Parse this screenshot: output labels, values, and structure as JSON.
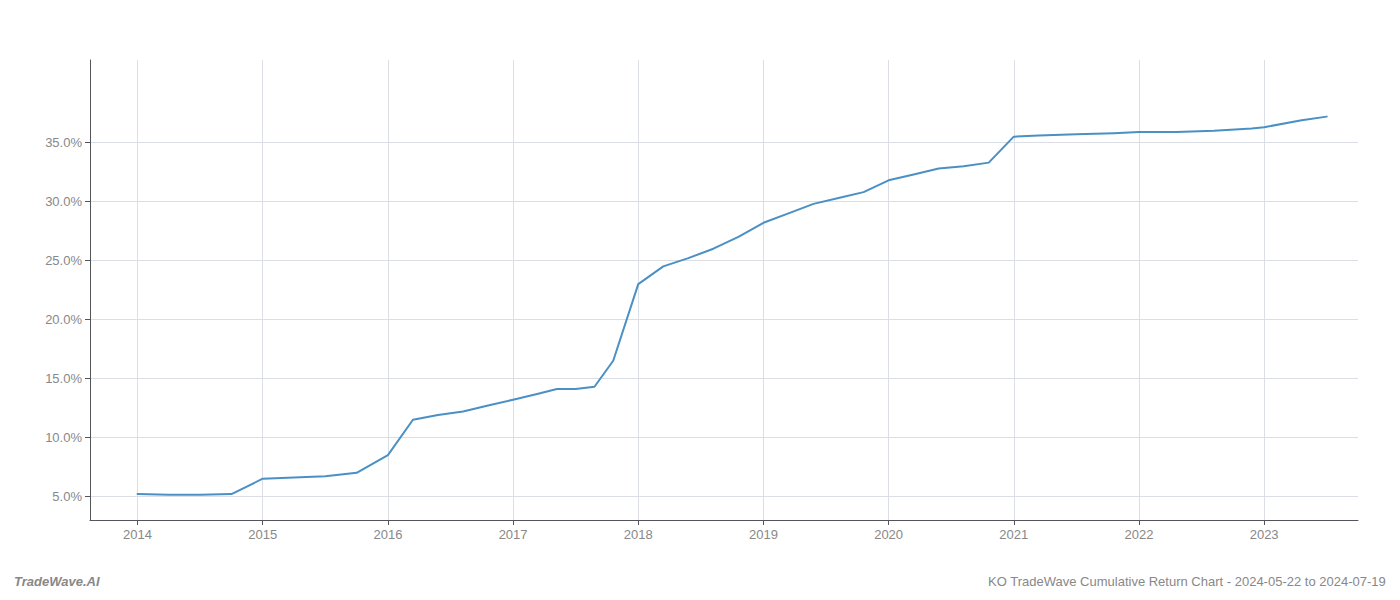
{
  "chart_data": {
    "type": "line",
    "annotations": [
      "TradeWave.AI",
      "KO TradeWave Cumulative Return Chart - 2024-05-22 to 2024-07-19"
    ],
    "color": "#4a90c4",
    "x": [
      2014.0,
      2014.25,
      2014.5,
      2014.75,
      2015.0,
      2015.25,
      2015.5,
      2015.75,
      2016.0,
      2016.2,
      2016.4,
      2016.6,
      2016.8,
      2017.0,
      2017.2,
      2017.35,
      2017.5,
      2017.65,
      2017.8,
      2018.0,
      2018.2,
      2018.4,
      2018.6,
      2018.8,
      2019.0,
      2019.2,
      2019.4,
      2019.6,
      2019.8,
      2020.0,
      2020.2,
      2020.4,
      2020.6,
      2020.8,
      2021.0,
      2021.2,
      2021.5,
      2021.8,
      2022.0,
      2022.3,
      2022.6,
      2022.9,
      2023.0,
      2023.3,
      2023.5
    ],
    "values": [
      5.2,
      5.15,
      5.15,
      5.2,
      6.5,
      6.6,
      6.7,
      7.0,
      8.5,
      11.5,
      11.9,
      12.2,
      12.7,
      13.2,
      13.7,
      14.1,
      14.1,
      14.3,
      16.5,
      23.0,
      24.5,
      25.2,
      26.0,
      27.0,
      28.2,
      29.0,
      29.8,
      30.3,
      30.8,
      31.8,
      32.3,
      32.8,
      33.0,
      33.3,
      35.5,
      35.6,
      35.7,
      35.8,
      35.9,
      35.9,
      36.0,
      36.2,
      36.3,
      36.9,
      37.2
    ],
    "xlim": [
      2013.62,
      2023.75
    ],
    "ylim": [
      3.0,
      42.0
    ],
    "xticks": [
      2014,
      2015,
      2016,
      2017,
      2018,
      2019,
      2020,
      2021,
      2022,
      2023
    ],
    "yticks": [
      {
        "value": 5.0,
        "label": "5.0%"
      },
      {
        "value": 10.0,
        "label": "10.0%"
      },
      {
        "value": 15.0,
        "label": "15.0%"
      },
      {
        "value": 20.0,
        "label": "20.0%"
      },
      {
        "value": 25.0,
        "label": "25.0%"
      },
      {
        "value": 30.0,
        "label": "30.0%"
      },
      {
        "value": 35.0,
        "label": "35.0%"
      }
    ],
    "grid": true
  }
}
